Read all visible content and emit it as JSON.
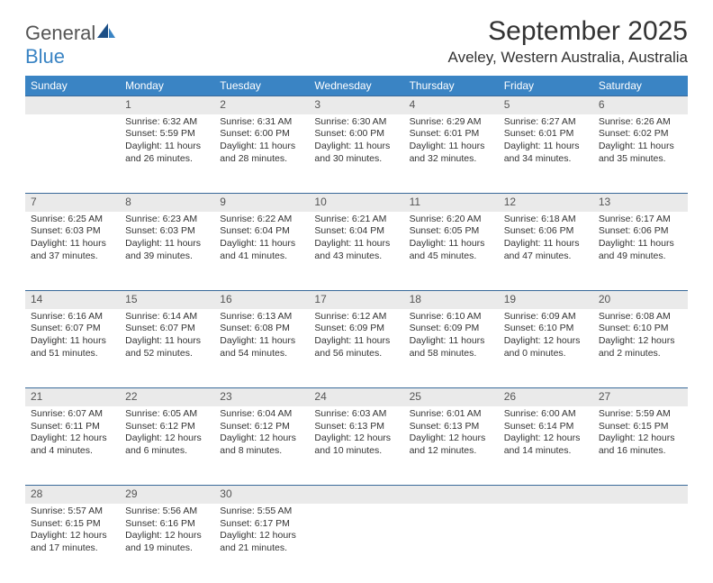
{
  "logo": {
    "main": "General",
    "sub": "Blue"
  },
  "title": "September 2025",
  "location": "Aveley, Western Australia, Australia",
  "colors": {
    "header_bg": "#3a84c4",
    "header_text": "#ffffff",
    "daynum_bg": "#eaeaea",
    "row_border": "#3a6a9a",
    "logo_accent": "#3a84c4",
    "body_text": "#333333"
  },
  "weekdays": [
    "Sunday",
    "Monday",
    "Tuesday",
    "Wednesday",
    "Thursday",
    "Friday",
    "Saturday"
  ],
  "weeks": [
    {
      "nums": [
        "",
        "1",
        "2",
        "3",
        "4",
        "5",
        "6"
      ],
      "cells": [
        null,
        {
          "sunrise": "Sunrise: 6:32 AM",
          "sunset": "Sunset: 5:59 PM",
          "day1": "Daylight: 11 hours",
          "day2": "and 26 minutes."
        },
        {
          "sunrise": "Sunrise: 6:31 AM",
          "sunset": "Sunset: 6:00 PM",
          "day1": "Daylight: 11 hours",
          "day2": "and 28 minutes."
        },
        {
          "sunrise": "Sunrise: 6:30 AM",
          "sunset": "Sunset: 6:00 PM",
          "day1": "Daylight: 11 hours",
          "day2": "and 30 minutes."
        },
        {
          "sunrise": "Sunrise: 6:29 AM",
          "sunset": "Sunset: 6:01 PM",
          "day1": "Daylight: 11 hours",
          "day2": "and 32 minutes."
        },
        {
          "sunrise": "Sunrise: 6:27 AM",
          "sunset": "Sunset: 6:01 PM",
          "day1": "Daylight: 11 hours",
          "day2": "and 34 minutes."
        },
        {
          "sunrise": "Sunrise: 6:26 AM",
          "sunset": "Sunset: 6:02 PM",
          "day1": "Daylight: 11 hours",
          "day2": "and 35 minutes."
        }
      ]
    },
    {
      "nums": [
        "7",
        "8",
        "9",
        "10",
        "11",
        "12",
        "13"
      ],
      "cells": [
        {
          "sunrise": "Sunrise: 6:25 AM",
          "sunset": "Sunset: 6:03 PM",
          "day1": "Daylight: 11 hours",
          "day2": "and 37 minutes."
        },
        {
          "sunrise": "Sunrise: 6:23 AM",
          "sunset": "Sunset: 6:03 PM",
          "day1": "Daylight: 11 hours",
          "day2": "and 39 minutes."
        },
        {
          "sunrise": "Sunrise: 6:22 AM",
          "sunset": "Sunset: 6:04 PM",
          "day1": "Daylight: 11 hours",
          "day2": "and 41 minutes."
        },
        {
          "sunrise": "Sunrise: 6:21 AM",
          "sunset": "Sunset: 6:04 PM",
          "day1": "Daylight: 11 hours",
          "day2": "and 43 minutes."
        },
        {
          "sunrise": "Sunrise: 6:20 AM",
          "sunset": "Sunset: 6:05 PM",
          "day1": "Daylight: 11 hours",
          "day2": "and 45 minutes."
        },
        {
          "sunrise": "Sunrise: 6:18 AM",
          "sunset": "Sunset: 6:06 PM",
          "day1": "Daylight: 11 hours",
          "day2": "and 47 minutes."
        },
        {
          "sunrise": "Sunrise: 6:17 AM",
          "sunset": "Sunset: 6:06 PM",
          "day1": "Daylight: 11 hours",
          "day2": "and 49 minutes."
        }
      ]
    },
    {
      "nums": [
        "14",
        "15",
        "16",
        "17",
        "18",
        "19",
        "20"
      ],
      "cells": [
        {
          "sunrise": "Sunrise: 6:16 AM",
          "sunset": "Sunset: 6:07 PM",
          "day1": "Daylight: 11 hours",
          "day2": "and 51 minutes."
        },
        {
          "sunrise": "Sunrise: 6:14 AM",
          "sunset": "Sunset: 6:07 PM",
          "day1": "Daylight: 11 hours",
          "day2": "and 52 minutes."
        },
        {
          "sunrise": "Sunrise: 6:13 AM",
          "sunset": "Sunset: 6:08 PM",
          "day1": "Daylight: 11 hours",
          "day2": "and 54 minutes."
        },
        {
          "sunrise": "Sunrise: 6:12 AM",
          "sunset": "Sunset: 6:09 PM",
          "day1": "Daylight: 11 hours",
          "day2": "and 56 minutes."
        },
        {
          "sunrise": "Sunrise: 6:10 AM",
          "sunset": "Sunset: 6:09 PM",
          "day1": "Daylight: 11 hours",
          "day2": "and 58 minutes."
        },
        {
          "sunrise": "Sunrise: 6:09 AM",
          "sunset": "Sunset: 6:10 PM",
          "day1": "Daylight: 12 hours",
          "day2": "and 0 minutes."
        },
        {
          "sunrise": "Sunrise: 6:08 AM",
          "sunset": "Sunset: 6:10 PM",
          "day1": "Daylight: 12 hours",
          "day2": "and 2 minutes."
        }
      ]
    },
    {
      "nums": [
        "21",
        "22",
        "23",
        "24",
        "25",
        "26",
        "27"
      ],
      "cells": [
        {
          "sunrise": "Sunrise: 6:07 AM",
          "sunset": "Sunset: 6:11 PM",
          "day1": "Daylight: 12 hours",
          "day2": "and 4 minutes."
        },
        {
          "sunrise": "Sunrise: 6:05 AM",
          "sunset": "Sunset: 6:12 PM",
          "day1": "Daylight: 12 hours",
          "day2": "and 6 minutes."
        },
        {
          "sunrise": "Sunrise: 6:04 AM",
          "sunset": "Sunset: 6:12 PM",
          "day1": "Daylight: 12 hours",
          "day2": "and 8 minutes."
        },
        {
          "sunrise": "Sunrise: 6:03 AM",
          "sunset": "Sunset: 6:13 PM",
          "day1": "Daylight: 12 hours",
          "day2": "and 10 minutes."
        },
        {
          "sunrise": "Sunrise: 6:01 AM",
          "sunset": "Sunset: 6:13 PM",
          "day1": "Daylight: 12 hours",
          "day2": "and 12 minutes."
        },
        {
          "sunrise": "Sunrise: 6:00 AM",
          "sunset": "Sunset: 6:14 PM",
          "day1": "Daylight: 12 hours",
          "day2": "and 14 minutes."
        },
        {
          "sunrise": "Sunrise: 5:59 AM",
          "sunset": "Sunset: 6:15 PM",
          "day1": "Daylight: 12 hours",
          "day2": "and 16 minutes."
        }
      ]
    },
    {
      "nums": [
        "28",
        "29",
        "30",
        "",
        "",
        "",
        ""
      ],
      "cells": [
        {
          "sunrise": "Sunrise: 5:57 AM",
          "sunset": "Sunset: 6:15 PM",
          "day1": "Daylight: 12 hours",
          "day2": "and 17 minutes."
        },
        {
          "sunrise": "Sunrise: 5:56 AM",
          "sunset": "Sunset: 6:16 PM",
          "day1": "Daylight: 12 hours",
          "day2": "and 19 minutes."
        },
        {
          "sunrise": "Sunrise: 5:55 AM",
          "sunset": "Sunset: 6:17 PM",
          "day1": "Daylight: 12 hours",
          "day2": "and 21 minutes."
        },
        null,
        null,
        null,
        null
      ]
    }
  ]
}
